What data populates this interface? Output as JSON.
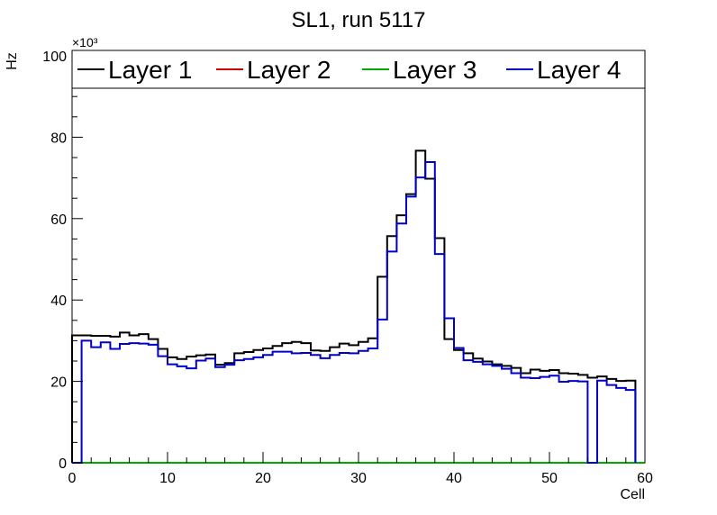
{
  "chart_data": {
    "type": "line",
    "step": true,
    "title": "SL1, run 5117",
    "xlabel": "Cell",
    "ylabel": "Hz",
    "y_multiplier": "×10³",
    "xlim": [
      0,
      60
    ],
    "ylim": [
      0,
      100
    ],
    "x_ticks": [
      0,
      10,
      20,
      30,
      40,
      50,
      60
    ],
    "y_ticks": [
      0,
      20,
      40,
      60,
      80,
      100
    ],
    "grid": false,
    "legend_position": "top",
    "bin_edges_start": 0,
    "bin_width": 1,
    "series": [
      {
        "name": "Layer 1",
        "color": "#000000",
        "values": [
          31.3,
          31.3,
          31.2,
          31.2,
          31.0,
          32.0,
          31.3,
          31.6,
          30.4,
          28.0,
          25.9,
          25.5,
          26.1,
          26.4,
          26.6,
          24.1,
          24.5,
          26.9,
          27.2,
          27.7,
          28.1,
          28.7,
          29.4,
          29.7,
          29.4,
          27.6,
          27.5,
          28.4,
          29.3,
          28.9,
          29.7,
          30.6,
          45.7,
          55.7,
          60.8,
          66.0,
          76.7,
          69.8,
          55.2,
          30.4,
          27.7,
          26.9,
          25.6,
          24.9,
          24.2,
          23.8,
          23.3,
          22.0,
          22.9,
          22.6,
          22.8,
          22.0,
          21.9,
          21.6,
          20.9,
          21.2,
          20.6,
          20.1,
          20.2,
          null
        ]
      },
      {
        "name": "Layer 2",
        "color": "#cc0000",
        "values": [
          0,
          0,
          0,
          0,
          0,
          0,
          0,
          0,
          0,
          0,
          0,
          0,
          0,
          0,
          0,
          0,
          0,
          0,
          0,
          0,
          0,
          0,
          0,
          0,
          0,
          0,
          0,
          0,
          0,
          0,
          0,
          0,
          0,
          0,
          0,
          0,
          0,
          0,
          0,
          0,
          0,
          0,
          0,
          0,
          0,
          0,
          0,
          0,
          0,
          0,
          0,
          0,
          0,
          0,
          0,
          0,
          0,
          0,
          0,
          0
        ]
      },
      {
        "name": "Layer 3",
        "color": "#00aa00",
        "values": [
          0,
          0,
          0,
          0,
          0,
          0,
          0,
          0,
          0,
          0,
          0,
          0,
          0,
          0,
          0,
          0,
          0,
          0,
          0,
          0,
          0,
          0,
          0,
          0,
          0,
          0,
          0,
          0,
          0,
          0,
          0,
          0,
          0,
          0,
          0,
          0,
          0,
          0,
          0,
          0,
          0,
          0,
          0,
          0,
          0,
          0,
          0,
          0,
          0,
          0,
          0,
          0,
          0,
          0,
          0,
          0,
          0,
          0,
          0,
          0
        ]
      },
      {
        "name": "Layer 4",
        "color": "#0000cc",
        "values": [
          0,
          30.0,
          28.4,
          29.6,
          28.0,
          29.2,
          29.4,
          29.3,
          29.0,
          26.2,
          24.2,
          23.7,
          23.2,
          25.1,
          25.6,
          23.5,
          24.1,
          25.2,
          25.5,
          25.9,
          26.5,
          27.3,
          27.3,
          26.9,
          27.0,
          26.5,
          25.7,
          26.5,
          27.0,
          26.9,
          27.5,
          28.1,
          35.2,
          51.9,
          58.8,
          65.4,
          70.1,
          73.9,
          51.3,
          35.5,
          28.2,
          25.2,
          24.8,
          24.2,
          23.8,
          23.1,
          22.0,
          20.9,
          20.8,
          21.1,
          21.4,
          19.9,
          20.1,
          20.0,
          0,
          20.2,
          19.1,
          18.4,
          17.9,
          null
        ]
      }
    ]
  }
}
